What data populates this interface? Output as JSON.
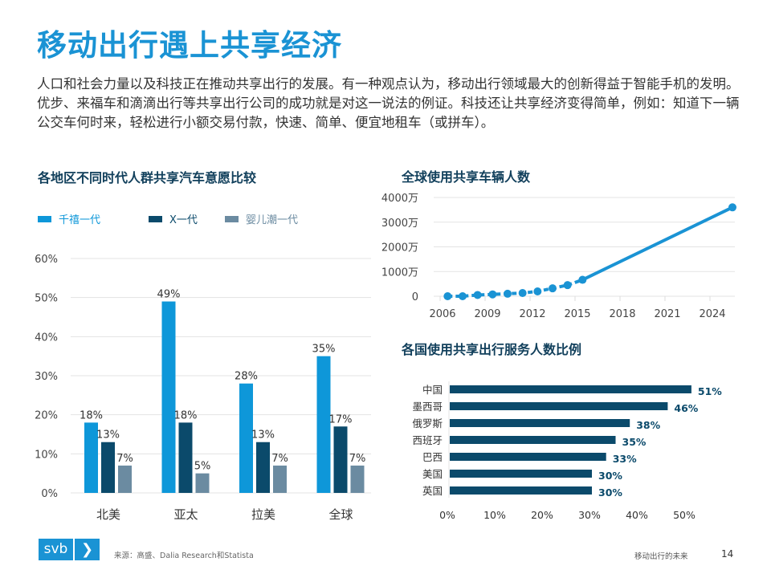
{
  "title": "移动出行遇上共享经济",
  "intro": "人口和社会力量以及科技正在推动共享出行的发展。有一种观点认为，移动出行领域最大的创新得益于智能手机的发明。优步、来福车和滴滴出行等共享出行公司的成功就是对这一说法的例证。科技还让共享经济变得简单，例如：知道下一辆公交车何时来，轻松进行小额交易付款，快速、简单、便宜地租车（或拼车）。",
  "colors": {
    "title": "#1a93d4",
    "millennial": "#0e97d9",
    "genx": "#0b4a6b",
    "boomer": "#6b8ba1",
    "line": "#1a93d4",
    "hbar": "#0b4a6b"
  },
  "chart_data": [
    {
      "type": "bar",
      "title": "各地区不同时代人群共享汽车意愿比较",
      "categories": [
        "北美",
        "亚太",
        "拉美",
        "全球"
      ],
      "series": [
        {
          "name": "千禧一代",
          "values": [
            18,
            49,
            28,
            35
          ]
        },
        {
          "name": "X一代",
          "values": [
            13,
            18,
            13,
            17
          ]
        },
        {
          "name": "婴儿潮一代",
          "values": [
            7,
            5,
            7,
            7
          ]
        }
      ],
      "data_labels": [
        [
          "18%",
          "49%",
          "28%",
          "35%"
        ],
        [
          "13%",
          "18%",
          "13%",
          "17%"
        ],
        [
          "7%",
          "5%",
          "7%",
          "7%"
        ]
      ],
      "ylim": [
        0,
        60
      ],
      "yticks": [
        "0%",
        "10%",
        "20%",
        "30%",
        "40%",
        "50%",
        "60%"
      ],
      "grid": true,
      "legend": "top"
    },
    {
      "type": "line",
      "title": "全球使用共享车辆人数",
      "x": [
        2006,
        2007,
        2008,
        2009,
        2010,
        2011,
        2012,
        2013,
        2014,
        2015,
        2025
      ],
      "values": [
        0,
        0,
        50,
        75,
        100,
        130,
        195,
        320,
        450,
        665,
        3600
      ],
      "note_style": "dashed with markers through 2015, solid projection to 2025",
      "ylim": [
        0,
        4000
      ],
      "yticks": [
        "0",
        "1000万",
        "2000万",
        "3000万",
        "4000万"
      ],
      "xticks": [
        "2006",
        "2009",
        "2012",
        "2015",
        "2018",
        "2021",
        "2024"
      ],
      "grid": true
    },
    {
      "type": "bar",
      "orientation": "horizontal",
      "title": "各国使用共享出行服务人数比例",
      "categories": [
        "中国",
        "墨西哥",
        "俄罗斯",
        "西班牙",
        "巴西",
        "美国",
        "英国"
      ],
      "values": [
        51,
        46,
        38,
        35,
        33,
        30,
        30
      ],
      "data_labels": [
        "51%",
        "46%",
        "38%",
        "35%",
        "33%",
        "30%",
        "30%"
      ],
      "xlim": [
        0,
        50
      ],
      "xticks": [
        "0%",
        "10%",
        "20%",
        "30%",
        "40%",
        "50%"
      ]
    }
  ],
  "footer": {
    "logo": "svb",
    "logo_arrow": "❯",
    "source": "来源：高盛、Dalia Research和Statista",
    "title": "移动出行的未来",
    "page": "14"
  }
}
